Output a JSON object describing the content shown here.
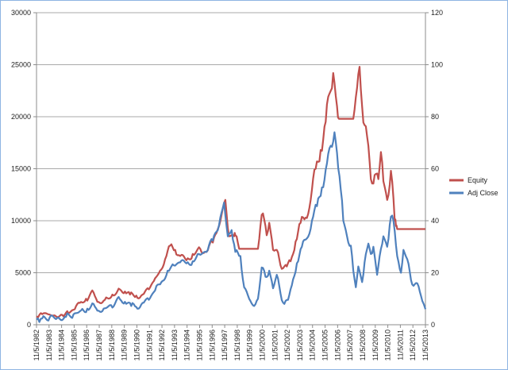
{
  "chart_data": {
    "type": "line",
    "title": "",
    "xlabel": "",
    "ylabel": "",
    "grid": true,
    "legend_placement": "right",
    "y_left": {
      "min": 0,
      "max": 30000,
      "ticks": [
        0,
        5000,
        10000,
        15000,
        20000,
        25000,
        30000
      ]
    },
    "y_right": {
      "min": 0,
      "max": 120,
      "ticks": [
        0,
        20,
        40,
        60,
        80,
        100,
        120
      ]
    },
    "x_tick_labels": [
      "11/5/1982",
      "11/5/1983",
      "11/5/1984",
      "11/5/1985",
      "11/5/1986",
      "11/5/1987",
      "11/5/1988",
      "11/5/1989",
      "11/5/1990",
      "11/5/1991",
      "11/5/1992",
      "11/5/1993",
      "11/5/1994",
      "11/5/1995",
      "11/5/1996",
      "11/5/1997",
      "11/5/1998",
      "11/5/1999",
      "11/5/2000",
      "11/5/2001",
      "11/5/2002",
      "11/5/2003",
      "11/5/2004",
      "11/5/2005",
      "11/5/2006",
      "11/5/2007",
      "11/5/2008",
      "11/5/2009",
      "11/5/2010",
      "11/5/2011",
      "11/5/2012",
      "11/5/2013"
    ],
    "x_range": [
      1982.85,
      2013.85
    ],
    "series": [
      {
        "name": "Equity",
        "axis": "left",
        "color": "#c0504d",
        "points": [
          [
            1982.85,
            800
          ],
          [
            1983.1,
            1000
          ],
          [
            1983.4,
            1100
          ],
          [
            1983.8,
            1000
          ],
          [
            1984.3,
            900
          ],
          [
            1984.9,
            950
          ],
          [
            1985.4,
            1100
          ],
          [
            1985.9,
            1500
          ],
          [
            1986.3,
            2100
          ],
          [
            1986.8,
            2500
          ],
          [
            1987.4,
            3100
          ],
          [
            1987.7,
            2200
          ],
          [
            1988.3,
            2400
          ],
          [
            1988.9,
            2900
          ],
          [
            1989.5,
            3400
          ],
          [
            1989.9,
            3200
          ],
          [
            1990.3,
            2900
          ],
          [
            1990.8,
            2800
          ],
          [
            1991.3,
            2900
          ],
          [
            1991.8,
            3400
          ],
          [
            1992.2,
            4200
          ],
          [
            1992.7,
            5200
          ],
          [
            1993.1,
            6300
          ],
          [
            1993.5,
            7600
          ],
          [
            1993.9,
            7200
          ],
          [
            1994.3,
            6600
          ],
          [
            1994.8,
            6200
          ],
          [
            1995.3,
            6800
          ],
          [
            1995.9,
            7300
          ],
          [
            1996.4,
            7000
          ],
          [
            1996.9,
            7900
          ],
          [
            1997.3,
            9200
          ],
          [
            1997.7,
            11200
          ],
          [
            1997.9,
            12000
          ],
          [
            1998.2,
            8500
          ],
          [
            1998.6,
            8500
          ],
          [
            1998.7,
            8600
          ],
          [
            1999.0,
            7300
          ],
          [
            2000.5,
            7300
          ],
          [
            2000.7,
            9500
          ],
          [
            2000.9,
            10700
          ],
          [
            2001.2,
            8600
          ],
          [
            2001.4,
            9800
          ],
          [
            2001.7,
            7200
          ],
          [
            2002.0,
            7200
          ],
          [
            2002.3,
            5700
          ],
          [
            2002.6,
            5600
          ],
          [
            2002.8,
            5600
          ],
          [
            2003.1,
            6100
          ],
          [
            2003.5,
            8000
          ],
          [
            2003.9,
            9800
          ],
          [
            2004.3,
            10300
          ],
          [
            2004.7,
            12000
          ],
          [
            2005.1,
            15000
          ],
          [
            2005.5,
            16800
          ],
          [
            2005.9,
            19500
          ],
          [
            2006.3,
            22500
          ],
          [
            2006.5,
            24200
          ],
          [
            2006.8,
            21000
          ],
          [
            2006.95,
            19800
          ],
          [
            2008.1,
            19800
          ],
          [
            2008.4,
            22800
          ],
          [
            2008.6,
            24800
          ],
          [
            2008.8,
            21000
          ],
          [
            2009.0,
            19200
          ],
          [
            2009.3,
            17200
          ],
          [
            2009.5,
            14000
          ],
          [
            2009.8,
            14400
          ],
          [
            2010.1,
            14000
          ],
          [
            2010.3,
            16600
          ],
          [
            2010.5,
            13800
          ],
          [
            2010.8,
            12000
          ],
          [
            2011.1,
            14800
          ],
          [
            2011.4,
            10000
          ],
          [
            2011.5,
            9500
          ],
          [
            2011.6,
            9200
          ],
          [
            2013.85,
            9200
          ]
        ]
      },
      {
        "name": "Adj Close",
        "axis": "right",
        "color": "#4f81bd",
        "points": [
          [
            1982.85,
            2.0
          ],
          [
            1983.3,
            2.4
          ],
          [
            1983.9,
            2.8
          ],
          [
            1984.5,
            2.6
          ],
          [
            1985.2,
            3.0
          ],
          [
            1985.8,
            4.0
          ],
          [
            1986.4,
            5.5
          ],
          [
            1986.9,
            6.2
          ],
          [
            1987.4,
            8.0
          ],
          [
            1987.7,
            5.4
          ],
          [
            1988.2,
            6.2
          ],
          [
            1988.8,
            7.5
          ],
          [
            1989.5,
            9.8
          ],
          [
            1989.9,
            8.8
          ],
          [
            1990.4,
            7.2
          ],
          [
            1990.8,
            6.8
          ],
          [
            1991.3,
            8.4
          ],
          [
            1991.8,
            9.6
          ],
          [
            1992.3,
            13.2
          ],
          [
            1992.8,
            16.4
          ],
          [
            1993.3,
            20.8
          ],
          [
            1993.8,
            22.8
          ],
          [
            1994.3,
            24.0
          ],
          [
            1994.8,
            23.6
          ],
          [
            1995.3,
            24.4
          ],
          [
            1995.8,
            27.2
          ],
          [
            1996.4,
            28.0
          ],
          [
            1996.9,
            32.4
          ],
          [
            1997.4,
            38.4
          ],
          [
            1997.8,
            47.0
          ],
          [
            1998.1,
            34.0
          ],
          [
            1998.4,
            36.4
          ],
          [
            1998.7,
            28.0
          ],
          [
            1999.1,
            26.4
          ],
          [
            1999.4,
            14.4
          ],
          [
            1999.8,
            10.0
          ],
          [
            2000.2,
            7.2
          ],
          [
            2000.5,
            10.0
          ],
          [
            2000.8,
            22.0
          ],
          [
            2001.1,
            18.4
          ],
          [
            2001.4,
            20.8
          ],
          [
            2001.7,
            14.0
          ],
          [
            2002.0,
            19.2
          ],
          [
            2002.3,
            12.0
          ],
          [
            2002.6,
            8.0
          ],
          [
            2002.9,
            9.6
          ],
          [
            2003.2,
            15.2
          ],
          [
            2003.6,
            23.6
          ],
          [
            2004.0,
            30.0
          ],
          [
            2004.4,
            33.2
          ],
          [
            2004.8,
            40.0
          ],
          [
            2005.2,
            45.6
          ],
          [
            2005.6,
            52.8
          ],
          [
            2006.0,
            62.0
          ],
          [
            2006.4,
            68.4
          ],
          [
            2006.6,
            74.0
          ],
          [
            2006.8,
            66.0
          ],
          [
            2007.1,
            52.0
          ],
          [
            2007.3,
            40.0
          ],
          [
            2007.6,
            34.0
          ],
          [
            2007.9,
            30.4
          ],
          [
            2008.1,
            20.8
          ],
          [
            2008.3,
            14.4
          ],
          [
            2008.5,
            22.4
          ],
          [
            2008.8,
            16.4
          ],
          [
            2009.0,
            24.0
          ],
          [
            2009.3,
            31.2
          ],
          [
            2009.5,
            27.2
          ],
          [
            2009.7,
            30.0
          ],
          [
            2010.0,
            19.2
          ],
          [
            2010.2,
            26.4
          ],
          [
            2010.5,
            34.0
          ],
          [
            2010.8,
            30.0
          ],
          [
            2011.0,
            38.4
          ],
          [
            2011.2,
            42.0
          ],
          [
            2011.4,
            36.0
          ],
          [
            2011.6,
            26.4
          ],
          [
            2011.9,
            20.0
          ],
          [
            2012.1,
            28.8
          ],
          [
            2012.4,
            25.2
          ],
          [
            2012.7,
            17.2
          ],
          [
            2013.0,
            15.6
          ],
          [
            2013.3,
            14.8
          ],
          [
            2013.6,
            9.2
          ],
          [
            2013.85,
            6.0
          ]
        ]
      }
    ]
  },
  "legend": [
    {
      "label": "Equity",
      "color": "#c0504d"
    },
    {
      "label": "Adj Close",
      "color": "#4f81bd"
    }
  ]
}
